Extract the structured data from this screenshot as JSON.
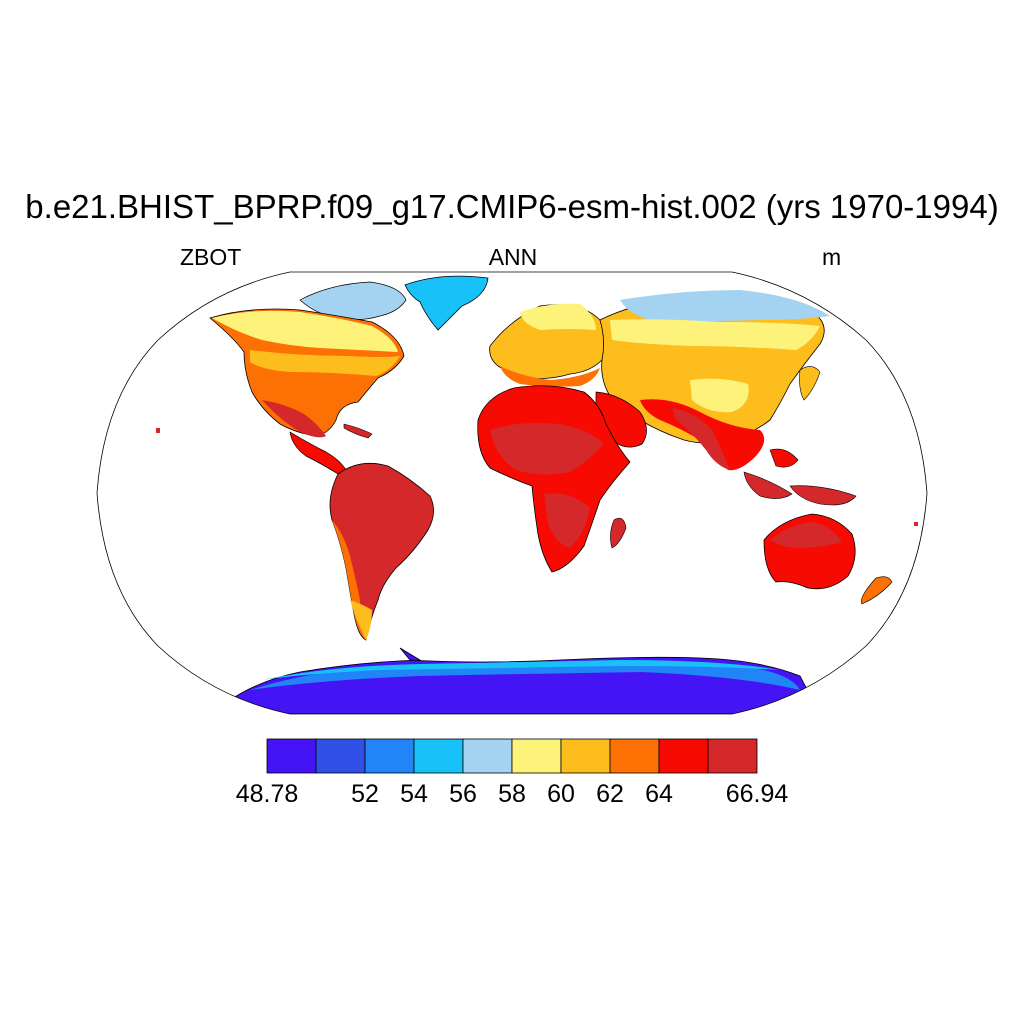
{
  "title": "b.e21.BHIST_BPRP.f09_g17.CMIP6-esm-hist.002 (yrs 1970-1994)",
  "left_label": "ZBOT",
  "center_label": "ANN",
  "right_label": "m",
  "colorbar": {
    "colors": [
      "#4414f4",
      "#3150e6",
      "#2185f7",
      "#19c1f9",
      "#a3d3f0",
      "#fdf37b",
      "#fdbd1c",
      "#fd7104",
      "#f60a02",
      "#d4282b"
    ],
    "tick_labels": [
      "48.78",
      "52",
      "54",
      "56",
      "58",
      "60",
      "62",
      "64",
      "66.94"
    ]
  },
  "map": {
    "projection": "Robinson",
    "ocean_fill": "#ffffff"
  }
}
